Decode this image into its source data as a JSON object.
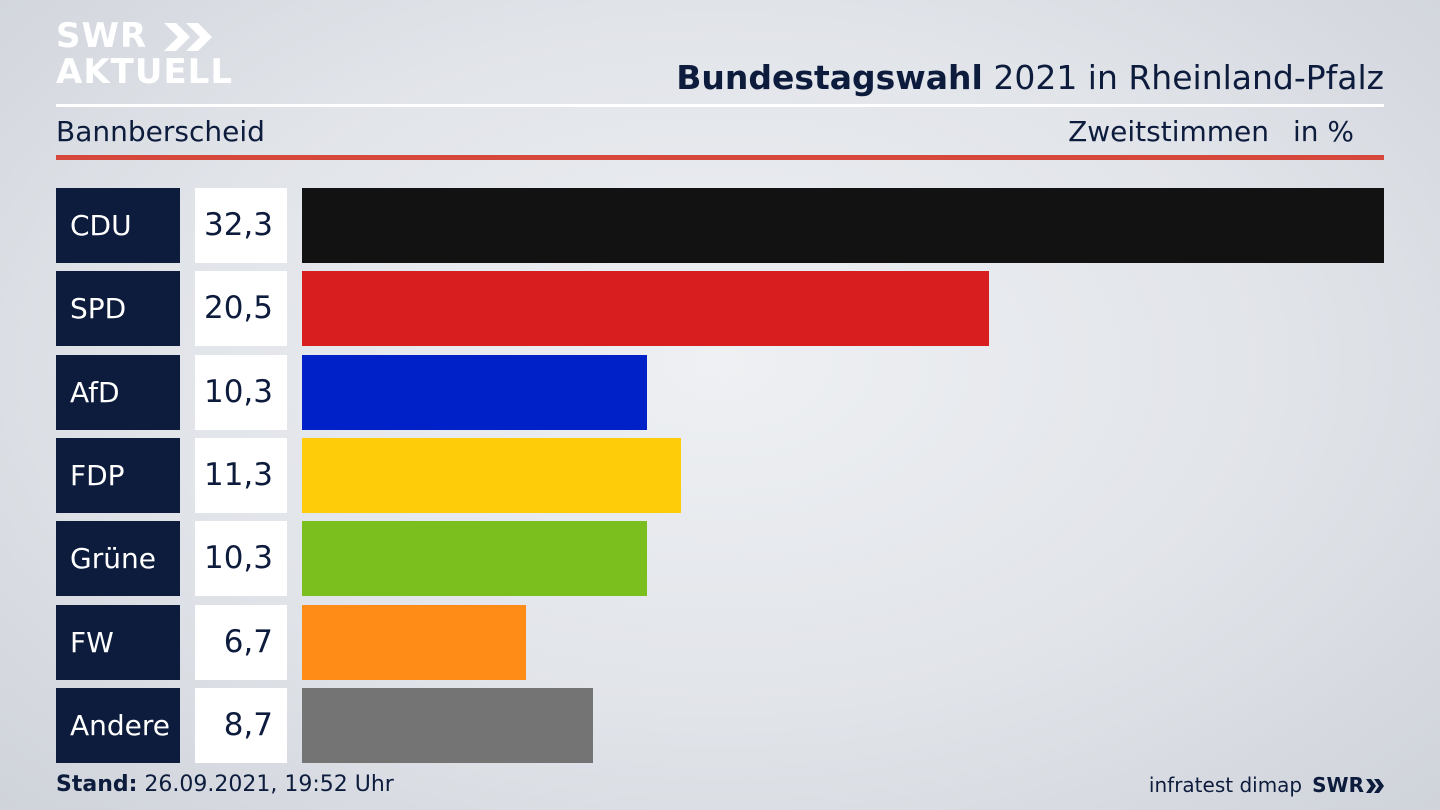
{
  "branding": {
    "logo_line1": "SWR",
    "logo_line2": "AKTUELL",
    "footer_source": "infratest dimap",
    "footer_logo": "SWR"
  },
  "header": {
    "title_bold": "Bundestagswahl",
    "title_rest": " 2021 in Rheinland-Pfalz",
    "region": "Bannberscheid",
    "vote_type": "Zweitstimmen",
    "unit": "in %"
  },
  "footer": {
    "stand_label": "Stand:",
    "stand_value": " 26.09.2021, 19:52 Uhr"
  },
  "chart_data": {
    "type": "bar",
    "orientation": "horizontal",
    "categories": [
      "CDU",
      "SPD",
      "AfD",
      "FDP",
      "Grüne",
      "FW",
      "Andere"
    ],
    "values": [
      32.3,
      20.5,
      10.3,
      11.3,
      10.3,
      6.7,
      8.7
    ],
    "value_labels": [
      "32,3",
      "20,5",
      "10,3",
      "11,3",
      "10,3",
      "6,7",
      "8,7"
    ],
    "colors": [
      "#121212",
      "#d81e1e",
      "#0021c7",
      "#ffcc0a",
      "#7abf1e",
      "#ff8c17",
      "#747474"
    ],
    "xlim": [
      0,
      32.3
    ],
    "title": "Bundestagswahl 2021 in Rheinland-Pfalz",
    "xlabel": "Zweitstimmen in %",
    "grid": false,
    "legend": "none"
  }
}
